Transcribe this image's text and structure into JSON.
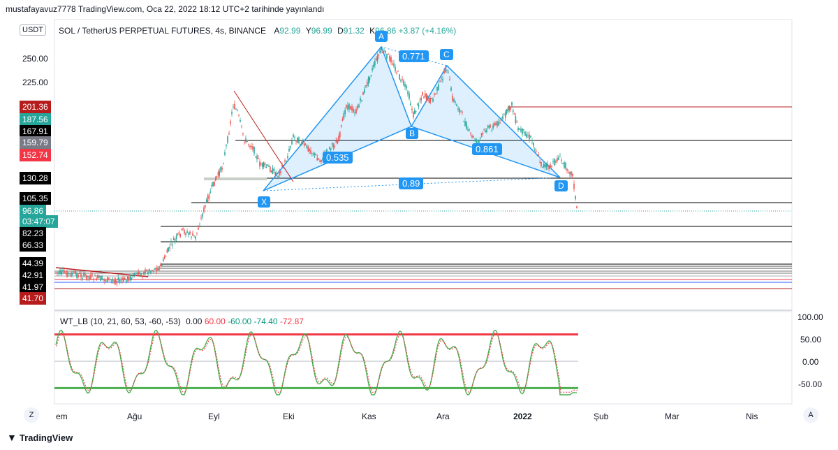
{
  "header": {
    "text": "mustafayavuz7778 TradingView.com, Oca 22, 2022 18:12 UTC+2 tarihinde yayınlandı"
  },
  "currency_button": "USDT",
  "symbol_legend": {
    "title": "SOL / TetherUS PERPETUAL FUTURES, 4s, BINANCE",
    "open_label": "A",
    "open": "92.99",
    "high_label": "Y",
    "high": "96.99",
    "low_label": "D",
    "low": "91.32",
    "close_label": "K",
    "close": "96.86",
    "change": "+3.87 (+4.16%)"
  },
  "price_axis_ticks": [
    "250.00",
    "225.00"
  ],
  "price_badges": [
    {
      "label": "201.36",
      "color": "#b71c1c"
    },
    {
      "label": "187.56",
      "color": "#26a69a"
    },
    {
      "label": "167.91",
      "color": "#000000"
    },
    {
      "label": "159.79",
      "color": "#787b86"
    },
    {
      "label": "152.74",
      "color": "#f23645"
    },
    {
      "label": "130.28",
      "color": "#000000"
    },
    {
      "label": "105.35",
      "color": "#000000"
    },
    {
      "label": "96.86",
      "color": "#26a69a"
    },
    {
      "label": "03:47:07",
      "color": "#26a69a"
    },
    {
      "label": "82.23",
      "color": "#000000"
    },
    {
      "label": "66.33",
      "color": "#000000"
    },
    {
      "label": "44.39",
      "color": "#000000"
    },
    {
      "label": "42.91",
      "color": "#000000"
    },
    {
      "label": "41.97",
      "color": "#000000"
    },
    {
      "label": "41.70",
      "color": "#b71c1c"
    }
  ],
  "pattern": {
    "points": [
      "X",
      "A",
      "B",
      "C",
      "D"
    ],
    "ratios": [
      "0.771",
      "0.535",
      "0.861",
      "0.89"
    ]
  },
  "oscillator": {
    "title": "WT_LB (10, 21, 60, 53, -60, -53)",
    "values": [
      "0.00",
      "60.00",
      "-60.00",
      "-74.40",
      "-72.87"
    ],
    "axis_ticks": [
      "100.00",
      "50.00",
      "0.00",
      "-50.00"
    ],
    "upper_level": 60,
    "lower_level": -60,
    "colors": {
      "upper": "#f23645",
      "lower": "#4caf50",
      "wt1": "#4caf50",
      "wt2": "#f23645"
    }
  },
  "time_axis": [
    "em",
    "Ağu",
    "Eyl",
    "Eki",
    "Kas",
    "Ara",
    "2022",
    "Şub",
    "Mar",
    "Nis"
  ],
  "footer": {
    "brand": "TradingView"
  },
  "axis_buttons": {
    "left": "Z",
    "right": "A"
  },
  "chart_data": {
    "type": "line",
    "title": "SOL / TetherUS PERPETUAL FUTURES, 4s, BINANCE",
    "x": [
      "Tem",
      "Ağu",
      "Eyl",
      "Eki",
      "Kas",
      "Ara",
      "2022",
      "Şub"
    ],
    "series": [
      {
        "values": [
          33,
          40,
          45,
          140,
          260,
          235,
          175,
          97
        ]
      }
    ],
    "horizontal_levels": [
      201.36,
      167.91,
      130.28,
      105.35,
      82.23,
      66.33,
      44.39,
      42.91,
      41.97,
      41.7
    ],
    "pattern_points": [
      {
        "label": "X",
        "date": "Eyl",
        "value": 115
      },
      {
        "label": "A",
        "date": "Kas",
        "value": 260
      },
      {
        "label": "B",
        "date": "Kas",
        "value": 177
      },
      {
        "label": "C",
        "date": "Ara",
        "value": 245
      },
      {
        "label": "D",
        "date": "Oca",
        "value": 130
      }
    ],
    "ylim": [
      30,
      270
    ]
  }
}
